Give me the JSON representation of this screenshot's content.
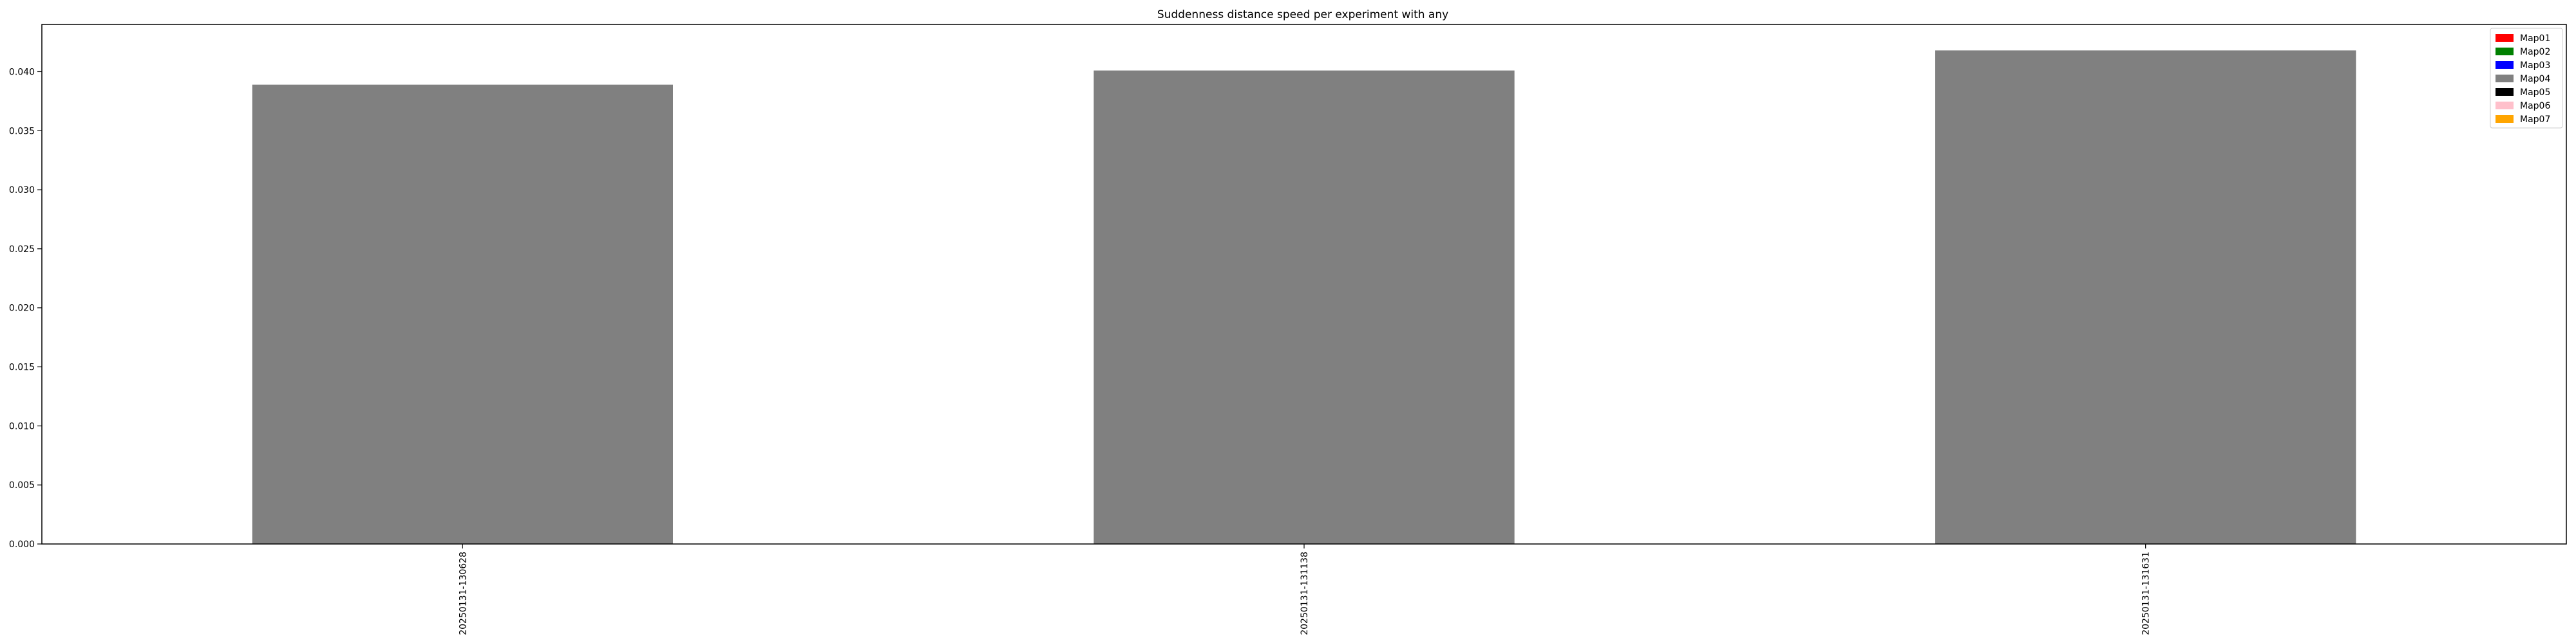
{
  "chart_data": {
    "type": "bar",
    "title": "Suddenness distance speed per experiment with any",
    "xlabel": "",
    "ylabel": "",
    "categories": [
      "20250131-130628",
      "20250131-131138",
      "20250131-131631"
    ],
    "series": [
      {
        "name": "Map04",
        "color": "#808080",
        "values": [
          0.0389,
          0.0401,
          0.0418
        ]
      }
    ],
    "ylim": [
      0,
      0.044
    ],
    "yticks": [
      0.0,
      0.005,
      0.01,
      0.015,
      0.02,
      0.025,
      0.03,
      0.035,
      0.04
    ],
    "ytick_labels": [
      "0.000",
      "0.005",
      "0.010",
      "0.015",
      "0.020",
      "0.025",
      "0.030",
      "0.035",
      "0.040"
    ],
    "grid": false,
    "legend": {
      "placement": "top-right",
      "entries": [
        {
          "name": "Map01",
          "color": "#ff0000"
        },
        {
          "name": "Map02",
          "color": "#008000"
        },
        {
          "name": "Map03",
          "color": "#0000ff"
        },
        {
          "name": "Map04",
          "color": "#808080"
        },
        {
          "name": "Map05",
          "color": "#000000"
        },
        {
          "name": "Map06",
          "color": "#ffc0cb"
        },
        {
          "name": "Map07",
          "color": "#ffa500"
        }
      ]
    }
  }
}
